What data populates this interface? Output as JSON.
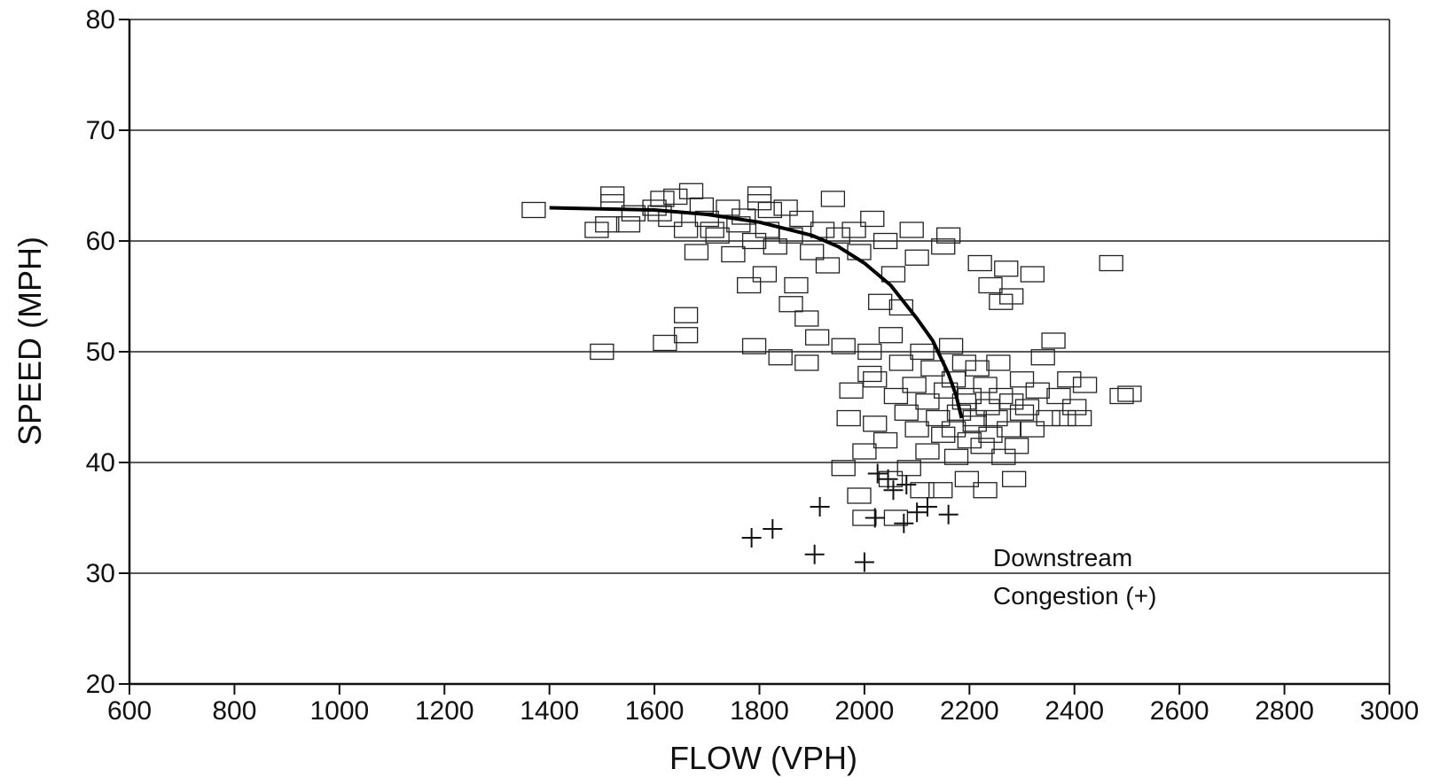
{
  "chart_data": {
    "type": "scatter",
    "title": "",
    "xlabel": "FLOW (VPH)",
    "ylabel": "SPEED (MPH)",
    "xlim": [
      600,
      3000
    ],
    "ylim": [
      20,
      80
    ],
    "x_ticks": [
      "600",
      "800",
      "1000",
      "1200",
      "1400",
      "1600",
      "1800",
      "2000",
      "2200",
      "2400",
      "2600",
      "2800",
      "3000"
    ],
    "y_ticks": [
      "20",
      "30",
      "40",
      "50",
      "60",
      "70",
      "80"
    ],
    "grid": "horizontal",
    "annotation_lines": [
      "Downstream",
      "Congestion (+)"
    ],
    "series": [
      {
        "marker": "square",
        "points": [
          [
            1370,
            62.8
          ],
          [
            1490,
            61.0
          ],
          [
            1500,
            50.0
          ],
          [
            1510,
            61.5
          ],
          [
            1520,
            63.5
          ],
          [
            1520,
            64.2
          ],
          [
            1550,
            61.5
          ],
          [
            1560,
            62.5
          ],
          [
            1600,
            63.0
          ],
          [
            1610,
            62.5
          ],
          [
            1615,
            63.8
          ],
          [
            1620,
            50.8
          ],
          [
            1630,
            62.0
          ],
          [
            1640,
            64.0
          ],
          [
            1660,
            53.3
          ],
          [
            1660,
            51.5
          ],
          [
            1660,
            61.0
          ],
          [
            1670,
            64.5
          ],
          [
            1680,
            59.0
          ],
          [
            1690,
            63.2
          ],
          [
            1700,
            62.0
          ],
          [
            1710,
            61.0
          ],
          [
            1720,
            60.5
          ],
          [
            1740,
            63.0
          ],
          [
            1750,
            58.8
          ],
          [
            1760,
            61.5
          ],
          [
            1770,
            62.2
          ],
          [
            1780,
            56.0
          ],
          [
            1790,
            50.5
          ],
          [
            1790,
            60.0
          ],
          [
            1800,
            63.5
          ],
          [
            1800,
            64.2
          ],
          [
            1810,
            57.0
          ],
          [
            1815,
            61.0
          ],
          [
            1820,
            62.8
          ],
          [
            1830,
            59.5
          ],
          [
            1840,
            49.5
          ],
          [
            1850,
            63.0
          ],
          [
            1860,
            54.3
          ],
          [
            1860,
            60.5
          ],
          [
            1870,
            56.0
          ],
          [
            1880,
            62.0
          ],
          [
            1890,
            49.0
          ],
          [
            1890,
            53.0
          ],
          [
            1900,
            59.0
          ],
          [
            1910,
            51.3
          ],
          [
            1920,
            61.0
          ],
          [
            1930,
            57.8
          ],
          [
            1940,
            63.8
          ],
          [
            1950,
            60.5
          ],
          [
            1960,
            50.5
          ],
          [
            1960,
            39.5
          ],
          [
            1970,
            44.0
          ],
          [
            1975,
            46.5
          ],
          [
            1980,
            61.0
          ],
          [
            1990,
            59.0
          ],
          [
            1990,
            37.0
          ],
          [
            2000,
            41.0
          ],
          [
            2000,
            35.0
          ],
          [
            2010,
            50.0
          ],
          [
            2010,
            48.0
          ],
          [
            2015,
            62.0
          ],
          [
            2020,
            43.5
          ],
          [
            2020,
            47.5
          ],
          [
            2030,
            54.5
          ],
          [
            2040,
            60.0
          ],
          [
            2040,
            42.0
          ],
          [
            2050,
            51.5
          ],
          [
            2050,
            38.5
          ],
          [
            2055,
            57.0
          ],
          [
            2060,
            46.0
          ],
          [
            2060,
            35.0
          ],
          [
            2070,
            54.0
          ],
          [
            2070,
            49.0
          ],
          [
            2080,
            44.5
          ],
          [
            2085,
            39.5
          ],
          [
            2090,
            61.0
          ],
          [
            2095,
            47.0
          ],
          [
            2100,
            43.0
          ],
          [
            2100,
            58.5
          ],
          [
            2110,
            50.0
          ],
          [
            2110,
            37.5
          ],
          [
            2120,
            45.5
          ],
          [
            2120,
            41.0
          ],
          [
            2130,
            48.5
          ],
          [
            2140,
            44.0
          ],
          [
            2145,
            37.5
          ],
          [
            2150,
            59.5
          ],
          [
            2150,
            42.5
          ],
          [
            2155,
            46.5
          ],
          [
            2160,
            60.5
          ],
          [
            2165,
            50.5
          ],
          [
            2170,
            43.0
          ],
          [
            2170,
            47.5
          ],
          [
            2175,
            40.5
          ],
          [
            2180,
            44.5
          ],
          [
            2190,
            45.5
          ],
          [
            2190,
            49.0
          ],
          [
            2195,
            38.5
          ],
          [
            2200,
            42.0
          ],
          [
            2200,
            46.0
          ],
          [
            2210,
            44.0
          ],
          [
            2210,
            43.5
          ],
          [
            2215,
            48.5
          ],
          [
            2220,
            58.0
          ],
          [
            2225,
            41.5
          ],
          [
            2230,
            47.0
          ],
          [
            2230,
            37.5
          ],
          [
            2235,
            45.0
          ],
          [
            2240,
            42.5
          ],
          [
            2240,
            56.0
          ],
          [
            2250,
            44.0
          ],
          [
            2255,
            49.0
          ],
          [
            2260,
            54.5
          ],
          [
            2260,
            46.0
          ],
          [
            2265,
            40.5
          ],
          [
            2270,
            57.5
          ],
          [
            2275,
            43.0
          ],
          [
            2280,
            45.5
          ],
          [
            2280,
            55.0
          ],
          [
            2285,
            38.5
          ],
          [
            2290,
            41.5
          ],
          [
            2300,
            44.5
          ],
          [
            2300,
            47.5
          ],
          [
            2310,
            45.0
          ],
          [
            2320,
            57.0
          ],
          [
            2320,
            43.0
          ],
          [
            2330,
            46.5
          ],
          [
            2340,
            49.5
          ],
          [
            2350,
            44.0
          ],
          [
            2360,
            51.0
          ],
          [
            2370,
            46.0
          ],
          [
            2380,
            44.0
          ],
          [
            2390,
            47.5
          ],
          [
            2400,
            45.0
          ],
          [
            2410,
            44.0
          ],
          [
            2420,
            47.0
          ],
          [
            2470,
            58.0
          ],
          [
            2490,
            46.0
          ],
          [
            2505,
            46.2
          ]
        ]
      },
      {
        "marker": "plus",
        "points": [
          [
            1785,
            33.2
          ],
          [
            1825,
            34.0
          ],
          [
            1905,
            31.7
          ],
          [
            1915,
            36.0
          ],
          [
            2000,
            31.0
          ],
          [
            2020,
            35.0
          ],
          [
            2025,
            39.0
          ],
          [
            2045,
            38.5
          ],
          [
            2055,
            37.5
          ],
          [
            2075,
            34.5
          ],
          [
            2080,
            38.0
          ],
          [
            2100,
            35.5
          ],
          [
            2120,
            36.0
          ],
          [
            2160,
            35.3
          ]
        ]
      }
    ],
    "fitted_curve": {
      "x": [
        1400,
        1600,
        1700,
        1800,
        1900,
        1950,
        2000,
        2050,
        2100,
        2130,
        2160,
        2175,
        2185
      ],
      "y": [
        63.0,
        62.8,
        62.4,
        61.7,
        60.5,
        59.5,
        58.0,
        56.0,
        53.0,
        51.0,
        48.0,
        46.0,
        44.0
      ]
    }
  }
}
